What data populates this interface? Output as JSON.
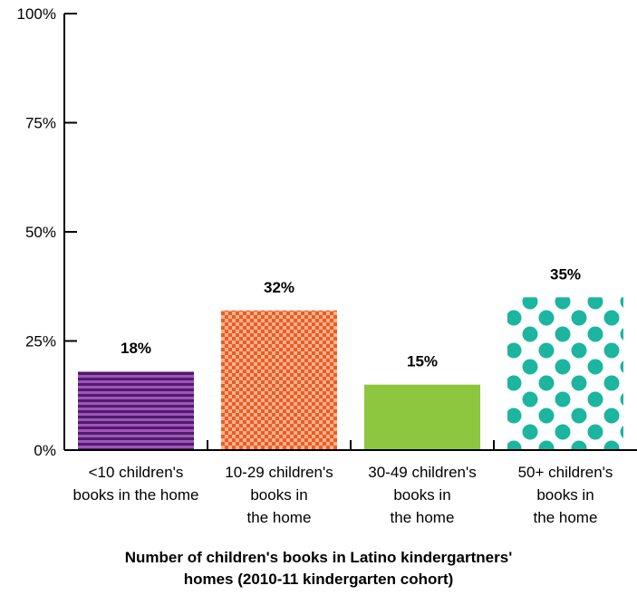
{
  "colors": {
    "purple_bar": "#a54fc6",
    "purple_stripe": "#4a2160",
    "orange_bar": "#ee5a25",
    "orange_check": "#f9b489",
    "green_bar": "#8dc63f",
    "teal_bar": "#1bb5a0",
    "axis": "#000000"
  },
  "chart_data": {
    "type": "bar",
    "categories": [
      "<10 children's\nbooks in the home",
      "10-29 children's\nbooks in\nthe home",
      "30-49 children's\nbooks in\nthe home",
      "50+ children's\nbooks in\nthe home"
    ],
    "values": [
      18,
      32,
      15,
      35
    ],
    "value_labels": [
      "18%",
      "32%",
      "15%",
      "35%"
    ],
    "bar_fills": [
      "purple-stripes",
      "orange-checker",
      "green-solid",
      "teal-dots"
    ],
    "ylim": [
      0,
      100
    ],
    "yticks": [
      0,
      25,
      50,
      75,
      100
    ],
    "ytick_labels": [
      "0%",
      "25%",
      "50%",
      "75%",
      "100%"
    ],
    "xlabel": "Number of children's books in Latino kindergartners'\nhomes (2010-11 kindergarten cohort)",
    "ylabel": "",
    "title": "",
    "grid": false,
    "legend": "none"
  }
}
